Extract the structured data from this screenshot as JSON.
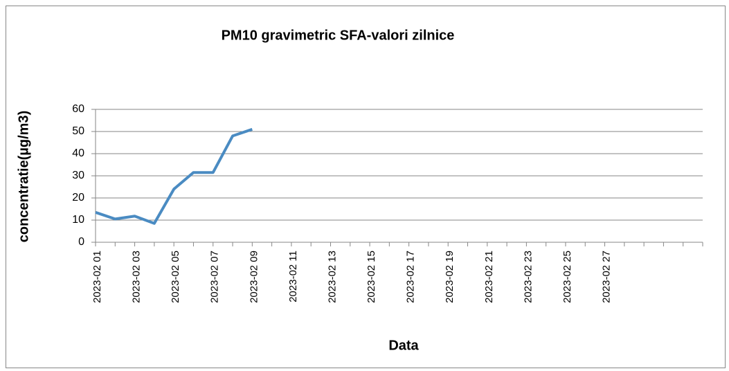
{
  "chart_data": {
    "type": "line",
    "title": "PM10 gravimetric SFA-valori zilnice",
    "x_label": "Data",
    "y_label": "concentratie(µg/m3)",
    "categories": [
      "2023-02 01",
      null,
      "2023-02 03",
      null,
      "2023-02 05",
      null,
      "2023-02 07",
      null,
      "2023-02 09",
      null,
      "2023-02 11",
      null,
      "2023-02 13",
      null,
      "2023-02 15",
      null,
      "2023-02 17",
      null,
      "2023-02 19",
      null,
      "2023-02 21",
      null,
      "2023-02 23",
      null,
      "2023-02 25",
      null,
      "2023-02 27",
      null,
      null,
      null,
      null
    ],
    "series": [
      {
        "name": "PM10",
        "color": "#4a8bc2",
        "values": [
          13.5,
          10.5,
          11.8,
          8.5,
          24,
          31.5,
          31.5,
          48,
          51,
          null,
          null,
          null,
          null,
          null,
          null,
          null,
          null,
          null,
          null,
          null,
          null,
          null,
          null,
          null,
          null,
          null,
          null,
          null,
          null,
          null,
          null
        ]
      }
    ],
    "ylim": [
      0,
      60
    ],
    "yticks": [
      0,
      10,
      20,
      30,
      40,
      50,
      60
    ],
    "grid": true
  }
}
